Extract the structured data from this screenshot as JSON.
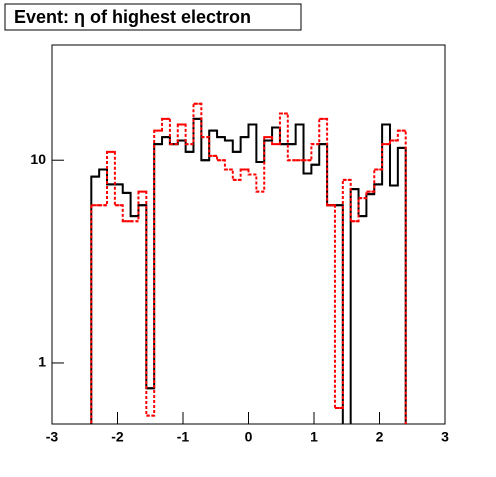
{
  "chart_data": {
    "type": "histogram",
    "title": "Event: η of highest electron",
    "bins": [
      -3,
      -2.88,
      -2.76,
      -2.64,
      -2.52,
      -2.4,
      -2.28,
      -2.16,
      -2.04,
      -1.92,
      -1.8,
      -1.68,
      -1.56,
      -1.44,
      -1.32,
      -1.2,
      -1.08,
      -0.96,
      -0.84,
      -0.72,
      -0.6,
      -0.48,
      -0.36,
      -0.24,
      -0.12,
      0,
      0.12,
      0.24,
      0.36,
      0.48,
      0.6,
      0.72,
      0.84,
      0.96,
      1.08,
      1.2,
      1.32,
      1.44,
      1.56,
      1.68,
      1.8,
      1.92,
      2.04,
      2.16,
      2.28,
      2.4,
      2.52,
      2.64,
      2.76,
      2.88,
      3
    ],
    "series": [
      {
        "color": "#000000",
        "style": "solid",
        "values": [
          0,
          0,
          0,
          0,
          0,
          8.3,
          9.0,
          7.6,
          7.6,
          6.9,
          5.3,
          6.0,
          0.75,
          12,
          13,
          12,
          12.5,
          11,
          16,
          10,
          14,
          13,
          12.5,
          11,
          13,
          15,
          9.8,
          12.5,
          14.5,
          12,
          12,
          15,
          8.6,
          9.5,
          12,
          6,
          6,
          0,
          7.2,
          5.3,
          6.8,
          7.6,
          15,
          7.5,
          11.5,
          0,
          0,
          0,
          0,
          0
        ]
      },
      {
        "color": "#ff0000",
        "style": "dashed",
        "values": [
          0,
          0,
          0,
          0,
          0,
          6,
          6,
          11,
          6,
          5,
          5,
          7,
          0.55,
          14,
          16,
          12,
          15,
          12,
          19,
          13,
          10.5,
          10,
          9,
          8,
          9,
          8.5,
          7,
          13,
          12,
          17,
          10,
          10,
          10,
          12,
          16,
          6,
          0.6,
          8,
          5,
          6.5,
          7,
          9,
          12,
          12.5,
          14,
          0,
          0,
          0,
          0,
          0
        ]
      }
    ],
    "xlim": [
      -3,
      3
    ],
    "xticks": [
      -3,
      -2,
      -1,
      0,
      1,
      2,
      3
    ],
    "ylim": [
      0.5,
      37
    ],
    "yticks": [
      1,
      10
    ],
    "log_y": true
  }
}
